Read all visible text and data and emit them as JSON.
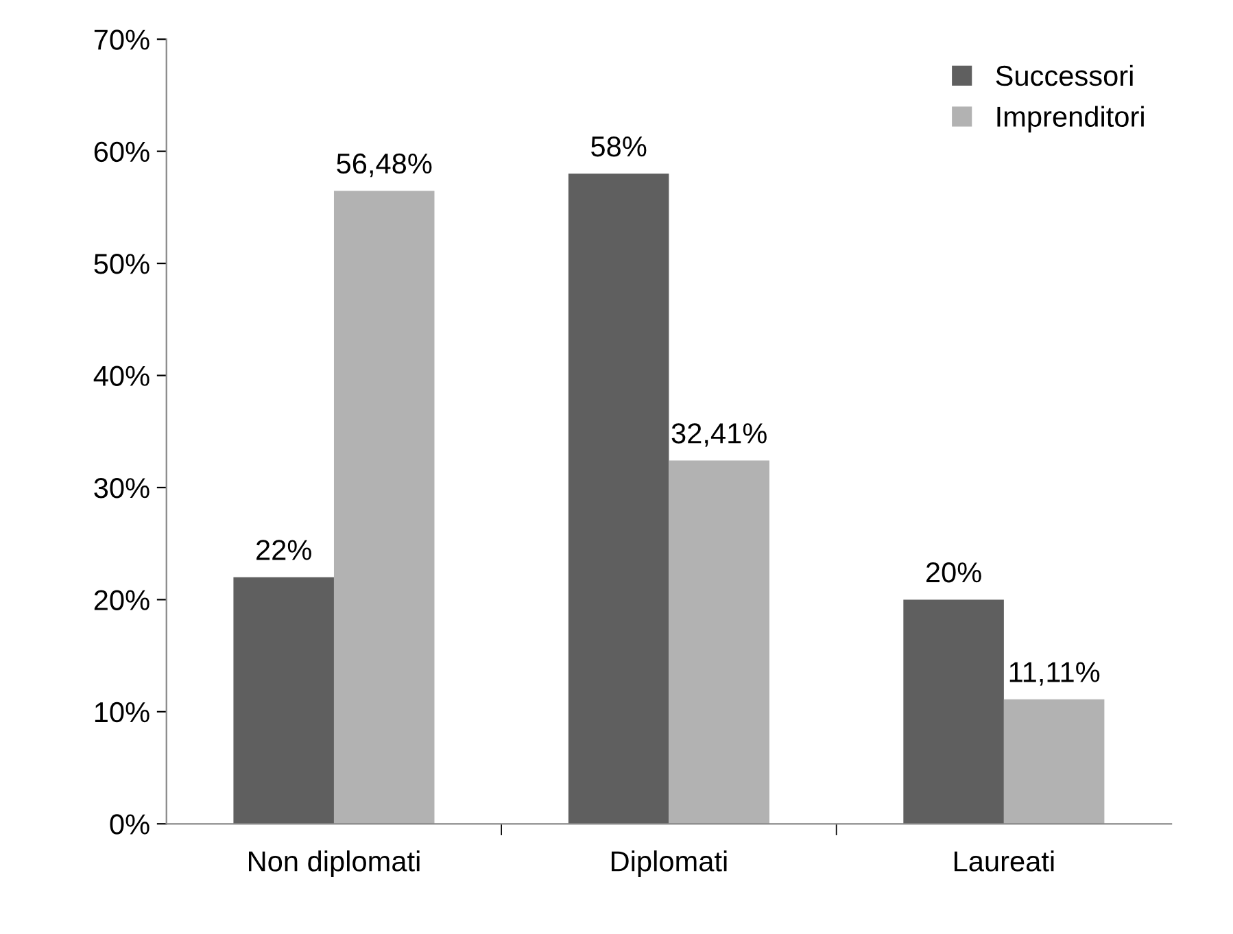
{
  "chart_data": {
    "type": "bar",
    "categories": [
      "Non diplomati",
      "Diplomati",
      "Laureati"
    ],
    "series": [
      {
        "name": "Successori",
        "color": "#5f5f5f",
        "values": [
          22,
          58,
          20
        ],
        "value_labels": [
          "22%",
          "58%",
          "20%"
        ]
      },
      {
        "name": "Imprenditori",
        "color": "#b2b2b2",
        "values": [
          56.48,
          32.41,
          11.11
        ],
        "value_labels": [
          "56,48%",
          "32,41%",
          "11,11%"
        ]
      }
    ],
    "ylim": [
      0,
      70
    ],
    "yticks": [
      {
        "value": 0,
        "label": "0%"
      },
      {
        "value": 10,
        "label": "10%"
      },
      {
        "value": 20,
        "label": "20%"
      },
      {
        "value": 30,
        "label": "30%"
      },
      {
        "value": 40,
        "label": "40%"
      },
      {
        "value": 50,
        "label": "50%"
      },
      {
        "value": 60,
        "label": "60%"
      },
      {
        "value": 70,
        "label": "70%"
      }
    ],
    "grid": false,
    "legend": "top right"
  }
}
